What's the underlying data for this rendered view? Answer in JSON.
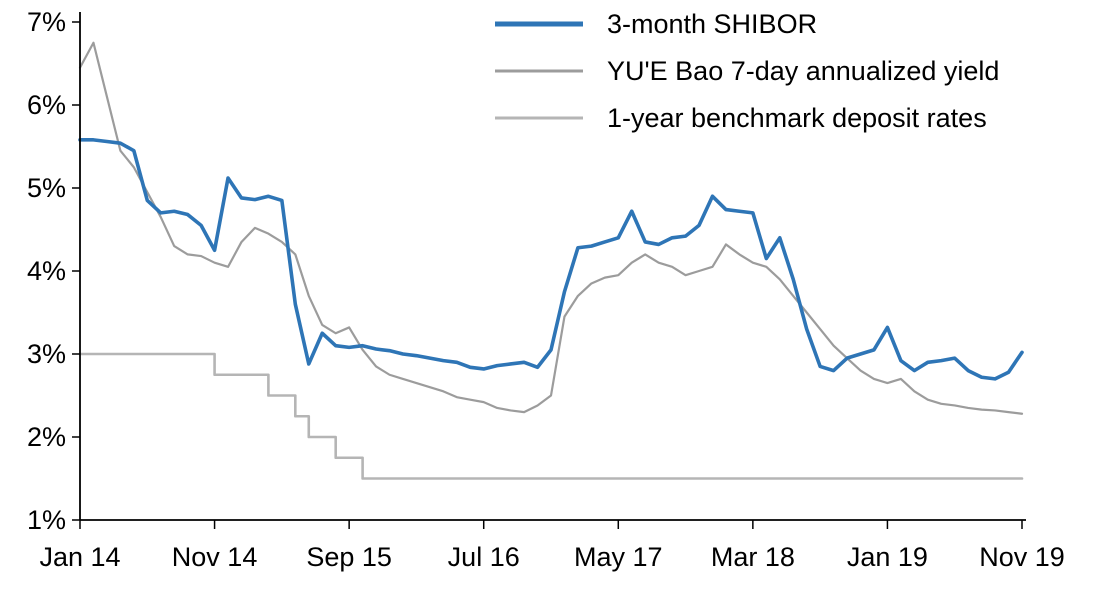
{
  "chart_data": {
    "type": "line",
    "title": "",
    "xlabel": "",
    "ylabel": "",
    "xlim": [
      0,
      70
    ],
    "ylim": [
      1,
      7
    ],
    "grid": false,
    "legend_position": "top-center",
    "x_unit": "months since Jan 2014",
    "x_tick_positions": [
      0,
      10,
      20,
      30,
      40,
      50,
      60,
      70
    ],
    "x_tick_labels": [
      "Jan 14",
      "Nov 14",
      "Sep 15",
      "Jul 16",
      "May 17",
      "Mar 18",
      "Jan 19",
      "Nov 19"
    ],
    "y_tick_values": [
      1,
      2,
      3,
      4,
      5,
      6,
      7
    ],
    "y_tick_labels": [
      "1%",
      "2%",
      "3%",
      "4%",
      "5%",
      "6%",
      "7%"
    ],
    "axis_color": "#000000",
    "series": [
      {
        "name": "3-month SHIBOR",
        "color": "#2E75B6",
        "width": 3.6,
        "style": "linear",
        "values": [
          5.58,
          5.58,
          5.56,
          5.54,
          5.45,
          4.85,
          4.7,
          4.72,
          4.68,
          4.55,
          4.25,
          5.12,
          4.88,
          4.86,
          4.9,
          4.85,
          3.6,
          2.88,
          3.25,
          3.1,
          3.08,
          3.1,
          3.06,
          3.04,
          3.0,
          2.98,
          2.95,
          2.92,
          2.9,
          2.84,
          2.82,
          2.86,
          2.88,
          2.9,
          2.84,
          3.05,
          3.75,
          4.28,
          4.3,
          4.35,
          4.4,
          4.72,
          4.35,
          4.32,
          4.4,
          4.42,
          4.55,
          4.9,
          4.74,
          4.72,
          4.7,
          4.15,
          4.4,
          3.9,
          3.3,
          2.85,
          2.8,
          2.95,
          3.0,
          3.05,
          3.32,
          2.92,
          2.8,
          2.9,
          2.92,
          2.95,
          2.8,
          2.72,
          2.7,
          2.78,
          3.02
        ]
      },
      {
        "name": "YU'E Bao 7-day annualized yield",
        "color": "#9C9C9C",
        "width": 2.2,
        "style": "linear",
        "values": [
          6.45,
          6.75,
          6.1,
          5.45,
          5.25,
          4.95,
          4.65,
          4.3,
          4.2,
          4.18,
          4.1,
          4.05,
          4.35,
          4.52,
          4.45,
          4.35,
          4.2,
          3.7,
          3.35,
          3.25,
          3.32,
          3.05,
          2.85,
          2.75,
          2.7,
          2.65,
          2.6,
          2.55,
          2.48,
          2.45,
          2.42,
          2.35,
          2.32,
          2.3,
          2.38,
          2.5,
          3.45,
          3.7,
          3.85,
          3.92,
          3.95,
          4.1,
          4.2,
          4.1,
          4.05,
          3.95,
          4.0,
          4.05,
          4.32,
          4.2,
          4.1,
          4.05,
          3.9,
          3.7,
          3.5,
          3.3,
          3.1,
          2.95,
          2.8,
          2.7,
          2.65,
          2.7,
          2.55,
          2.45,
          2.4,
          2.38,
          2.35,
          2.33,
          2.32,
          2.3,
          2.28
        ]
      },
      {
        "name": "1-year benchmark deposit rates",
        "color": "#B5B5B5",
        "width": 2.6,
        "style": "step",
        "values": [
          3.0,
          3.0,
          3.0,
          3.0,
          3.0,
          3.0,
          3.0,
          3.0,
          3.0,
          3.0,
          2.75,
          2.75,
          2.75,
          2.75,
          2.5,
          2.5,
          2.25,
          2.0,
          2.0,
          1.75,
          1.75,
          1.5,
          1.5,
          1.5,
          1.5,
          1.5,
          1.5,
          1.5,
          1.5,
          1.5,
          1.5,
          1.5,
          1.5,
          1.5,
          1.5,
          1.5,
          1.5,
          1.5,
          1.5,
          1.5,
          1.5,
          1.5,
          1.5,
          1.5,
          1.5,
          1.5,
          1.5,
          1.5,
          1.5,
          1.5,
          1.5,
          1.5,
          1.5,
          1.5,
          1.5,
          1.5,
          1.5,
          1.5,
          1.5,
          1.5,
          1.5,
          1.5,
          1.5,
          1.5,
          1.5,
          1.5,
          1.5,
          1.5,
          1.5,
          1.5,
          1.5
        ]
      }
    ]
  }
}
